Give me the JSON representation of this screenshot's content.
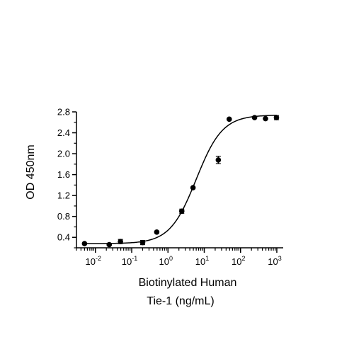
{
  "chart_data": {
    "type": "scatter",
    "title": "",
    "xlabel_lines": [
      "Biotinylated Human",
      "Tie-1 (ng/mL)"
    ],
    "ylabel": "OD 450nm",
    "x_scale": "log",
    "xlim": [
      0.003,
      1500
    ],
    "ylim": [
      0.2,
      2.8
    ],
    "x_ticks": [
      {
        "value": 0.01,
        "base": "10",
        "exp": "-2"
      },
      {
        "value": 0.1,
        "base": "10",
        "exp": "-1"
      },
      {
        "value": 1,
        "base": "10",
        "exp": "0"
      },
      {
        "value": 10,
        "base": "10",
        "exp": "1"
      },
      {
        "value": 100,
        "base": "10",
        "exp": "2"
      },
      {
        "value": 1000,
        "base": "10",
        "exp": "3"
      }
    ],
    "y_ticks": [
      0.4,
      0.8,
      1.2,
      1.6,
      2.0,
      2.4,
      2.8
    ],
    "y_tick_labels": [
      "0.4",
      "0.8",
      "1.2",
      "1.6",
      "2.0",
      "2.4",
      "2.8"
    ],
    "y_minor_ticks": [
      0.2,
      0.6,
      1.0,
      1.4,
      1.8,
      2.2,
      2.6
    ],
    "grid": false,
    "legend": "none",
    "marker_color": "#000000",
    "series": [
      {
        "points": [
          {
            "x": 0.005,
            "y": 0.28,
            "err": 0.0
          },
          {
            "x": 0.024,
            "y": 0.26,
            "err": 0.01
          },
          {
            "x": 0.049,
            "y": 0.32,
            "err": 0.04
          },
          {
            "x": 0.2,
            "y": 0.3,
            "err": 0.04
          },
          {
            "x": 0.49,
            "y": 0.5,
            "err": 0.0
          },
          {
            "x": 2.4,
            "y": 0.9,
            "err": 0.04
          },
          {
            "x": 4.9,
            "y": 1.35,
            "err": 0.0
          },
          {
            "x": 24.4,
            "y": 1.88,
            "err": 0.07
          },
          {
            "x": 48.8,
            "y": 2.66,
            "err": 0.0
          },
          {
            "x": 244,
            "y": 2.69,
            "err": 0.0
          },
          {
            "x": 488,
            "y": 2.67,
            "err": 0.0
          },
          {
            "x": 977,
            "y": 2.69,
            "err": 0.04
          }
        ]
      }
    ],
    "fit_curve": {
      "model": "4PL",
      "bottom": 0.28,
      "top": 2.74,
      "ec50": 6.0,
      "hill": 1.2
    }
  }
}
